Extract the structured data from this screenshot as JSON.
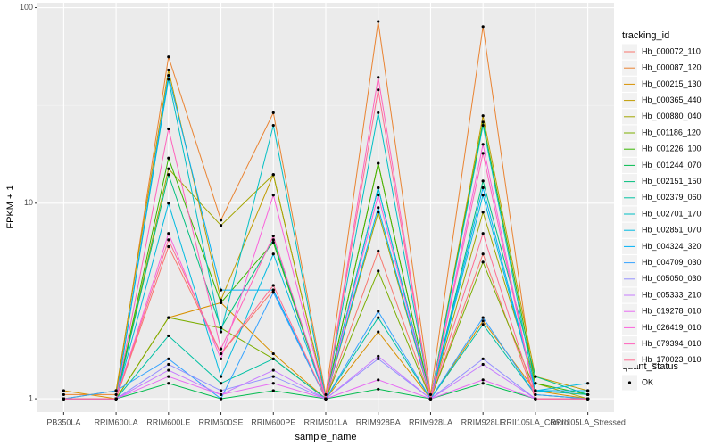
{
  "chart_data": {
    "type": "line",
    "x_label": "sample_name",
    "y_label": "FPKM + 1",
    "log_scale": "y",
    "grid": true,
    "ylim": [
      0.855,
      106
    ],
    "yticks": [
      1,
      10,
      100
    ],
    "legend_title": "tracking_id",
    "point_legend": {
      "title": "quant_status",
      "labels": [
        "OK"
      ]
    },
    "point_color": "#000000",
    "categories": [
      "PB350LA",
      "RRIM600LA",
      "RRIM600LE",
      "RRIM600SE",
      "RRIM600PE",
      "RRIM901LA",
      "RRIM928BA",
      "RRIM928LA",
      "RRIM928LE",
      "RRII105LA_Control",
      "RRII105LA_Stressed"
    ],
    "series": [
      {
        "name": "Hb_000072_110",
        "color": "#F8766D",
        "values": [
          1,
          1,
          6,
          1.7,
          3.6,
          1,
          5.7,
          1,
          5.5,
          1,
          1
        ]
      },
      {
        "name": "Hb_000087_120",
        "color": "#EA8331",
        "values": [
          1.05,
          1.05,
          56,
          8.2,
          29,
          1.05,
          85,
          1.05,
          80,
          1.05,
          1.0
        ]
      },
      {
        "name": "Hb_000215_130",
        "color": "#D89000",
        "values": [
          1.1,
          1.0,
          2.6,
          3.1,
          1.7,
          1.0,
          2.2,
          1.0,
          2.5,
          1.1,
          1.0
        ]
      },
      {
        "name": "Hb_000365_440",
        "color": "#C09B00",
        "values": [
          1.0,
          1.1,
          48,
          3.2,
          14,
          1,
          16,
          1,
          28,
          1.3,
          1.1
        ]
      },
      {
        "name": "Hb_000880_040",
        "color": "#A3A500",
        "values": [
          1,
          1,
          15,
          7.7,
          14,
          1,
          9,
          1,
          9,
          1.2,
          1
        ]
      },
      {
        "name": "Hb_001186_120",
        "color": "#7CAE00",
        "values": [
          1,
          1,
          2.6,
          2.3,
          1.6,
          1,
          4.5,
          1,
          5,
          1.1,
          1.05
        ]
      },
      {
        "name": "Hb_001226_100",
        "color": "#39B600",
        "values": [
          1,
          1,
          17,
          3.1,
          6.3,
          1,
          16,
          1,
          26,
          1.2,
          1.05
        ]
      },
      {
        "name": "Hb_001244_070",
        "color": "#00BB4E",
        "values": [
          1,
          1,
          1.2,
          1,
          1.1,
          1,
          1.12,
          1,
          1.2,
          1,
          1
        ]
      },
      {
        "name": "Hb_002151_150",
        "color": "#00BF7D",
        "values": [
          1,
          1,
          14,
          2.3,
          6.5,
          1,
          12,
          1,
          13,
          1.3,
          1.05
        ]
      },
      {
        "name": "Hb_002379_060",
        "color": "#00C1A3",
        "values": [
          1,
          1,
          2.1,
          1.2,
          1.6,
          1,
          2.6,
          1,
          2.4,
          1.05,
          1
        ]
      },
      {
        "name": "Hb_002701_170",
        "color": "#00BFC4",
        "values": [
          1,
          1,
          43,
          2.2,
          25,
          1,
          29,
          1,
          25,
          1.1,
          1.05
        ]
      },
      {
        "name": "Hb_002851_070",
        "color": "#00BAE0",
        "values": [
          1,
          1,
          10,
          1.3,
          5.5,
          1,
          12,
          1,
          11,
          1.1,
          1.2
        ]
      },
      {
        "name": "Hb_004324_320",
        "color": "#00B0F6",
        "values": [
          1,
          1,
          45,
          3.6,
          3.6,
          1,
          9.5,
          1,
          12,
          1.1,
          1.1
        ]
      },
      {
        "name": "Hb_004709_030",
        "color": "#35A2FF",
        "values": [
          1,
          1.1,
          1.6,
          1,
          3.5,
          1,
          2.8,
          1,
          2.6,
          1.05,
          1
        ]
      },
      {
        "name": "Hb_005050_030",
        "color": "#9590FF",
        "values": [
          1,
          1,
          1.5,
          1.1,
          1.3,
          1,
          1.6,
          1,
          1.6,
          1,
          1
        ]
      },
      {
        "name": "Hb_005333_210",
        "color": "#C77CFF",
        "values": [
          1,
          1,
          1.4,
          1.05,
          1.4,
          1,
          1.65,
          1,
          1.5,
          1,
          1
        ]
      },
      {
        "name": "Hb_019278_010",
        "color": "#E76BF3",
        "values": [
          1,
          1,
          1.3,
          1.05,
          1.2,
          1,
          1.25,
          1,
          1.25,
          1,
          1
        ]
      },
      {
        "name": "Hb_026419_010",
        "color": "#FA62DB",
        "values": [
          1,
          1,
          7,
          1.6,
          11,
          1,
          11,
          1,
          20,
          1,
          1
        ]
      },
      {
        "name": "Hb_079394_010",
        "color": "#FF62BC",
        "values": [
          1,
          1,
          24,
          1.8,
          6.8,
          1,
          44,
          1,
          18,
          1,
          1
        ]
      },
      {
        "name": "Hb_170023_010",
        "color": "#FF6C91",
        "values": [
          1,
          1,
          6.5,
          1.7,
          3.8,
          1,
          38,
          1,
          7,
          1,
          1
        ]
      }
    ]
  }
}
